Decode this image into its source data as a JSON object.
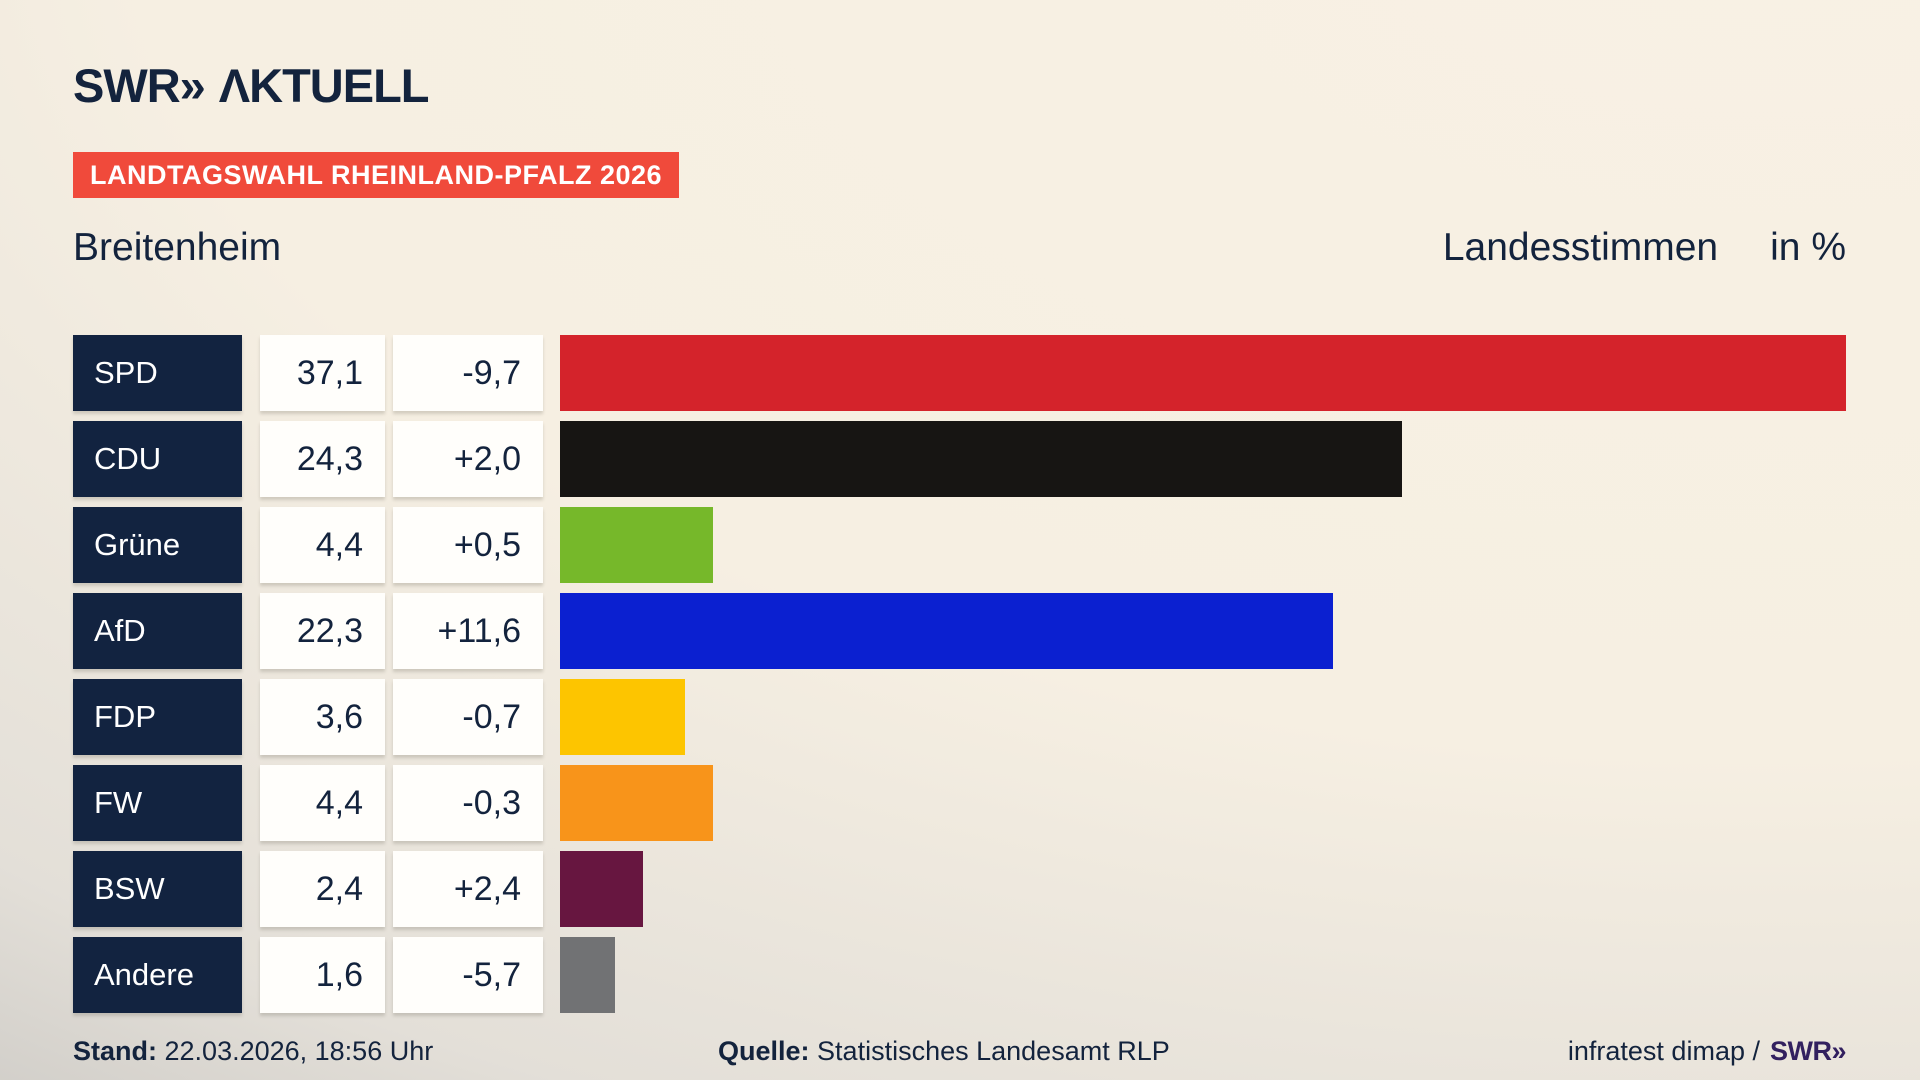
{
  "brand": {
    "network": "SWR»",
    "product": "ΛKTUELL"
  },
  "badge": {
    "text": "LANDTAGSWAHL RHEINLAND-PFALZ 2026",
    "bg": "#f04a3b"
  },
  "header": {
    "municipality": "Breitenheim",
    "vote_type": "Landesstimmen",
    "unit": "in %"
  },
  "chart_data": {
    "type": "bar",
    "orientation": "horizontal",
    "unit": "%",
    "title": "Landtagswahl Rheinland-Pfalz 2026 — Breitenheim, Landesstimmen in %",
    "categories": [
      "SPD",
      "CDU",
      "Grüne",
      "AfD",
      "FDP",
      "FW",
      "BSW",
      "Andere"
    ],
    "values": [
      37.1,
      24.3,
      4.4,
      22.3,
      3.6,
      4.4,
      2.4,
      1.6
    ],
    "value_labels": [
      "37,1",
      "24,3",
      "4,4",
      "22,3",
      "3,6",
      "4,4",
      "2,4",
      "1,6"
    ],
    "changes": [
      -9.7,
      2.0,
      0.5,
      11.6,
      -0.7,
      -0.3,
      2.4,
      -5.7
    ],
    "change_labels": [
      "-9,7",
      "+2,0",
      "+0,5",
      "+11,6",
      "-0,7",
      "-0,3",
      "+2,4",
      "-5,7"
    ],
    "bar_colors": [
      "#d4232b",
      "#171513",
      "#76b82a",
      "#0b20d0",
      "#fdc500",
      "#f8941a",
      "#671640",
      "#717274"
    ],
    "xlim": [
      0,
      37.1
    ],
    "grid": false,
    "legend": false
  },
  "footer": {
    "stand_label": "Stand:",
    "stand_value": "22.03.2026, 18:56 Uhr",
    "quelle_label": "Quelle:",
    "quelle_value": "Statistisches Landesamt RLP",
    "credit_text": "infratest dimap /",
    "credit_brand": "SWR»"
  }
}
